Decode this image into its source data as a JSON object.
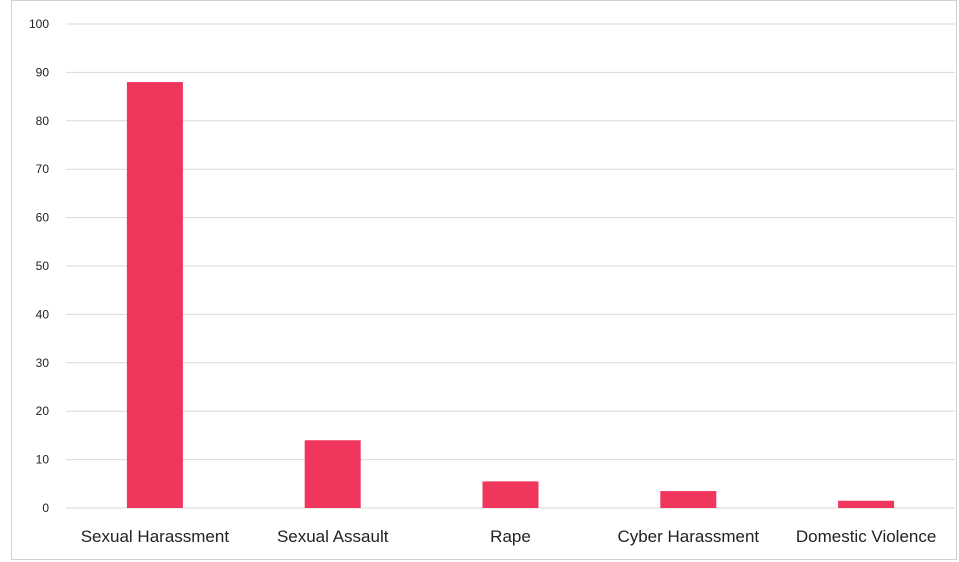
{
  "chart_data": {
    "type": "bar",
    "title": "",
    "xlabel": "",
    "ylabel": "",
    "categories": [
      "Sexual Harassment",
      "Sexual Assault",
      "Rape",
      "Cyber Harassment",
      "Domestic Violence"
    ],
    "values": [
      88,
      14,
      5.5,
      3.5,
      1.5
    ],
    "ylim": [
      0,
      100
    ],
    "yticks": [
      0,
      10,
      20,
      30,
      40,
      50,
      60,
      70,
      80,
      90,
      100
    ],
    "grid": true,
    "legend": "none",
    "bar_color": "#f0365c",
    "gridline_color": "#d9d9d9"
  }
}
